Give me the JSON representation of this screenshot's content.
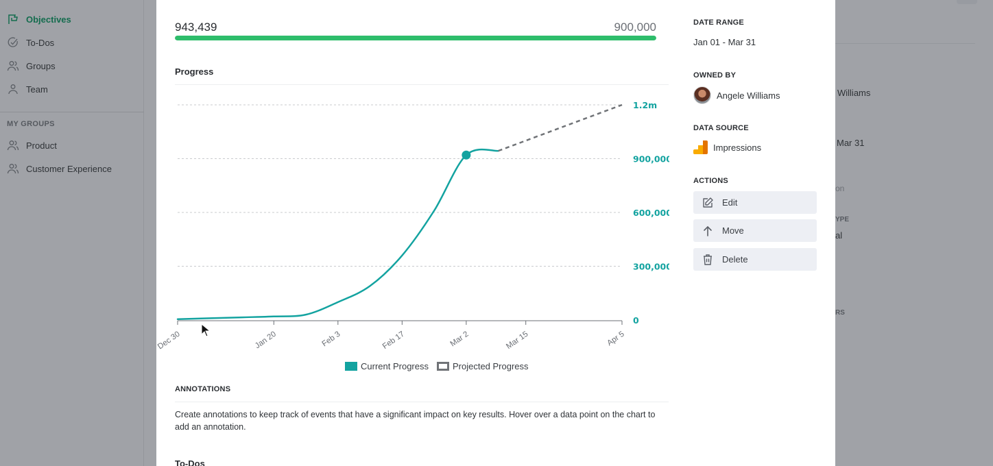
{
  "background": {
    "sidebar": {
      "items": [
        {
          "label": "Objectives",
          "icon": "flag-icon",
          "active": true
        },
        {
          "label": "To-Dos",
          "icon": "check-circle-icon",
          "active": false
        },
        {
          "label": "Groups",
          "icon": "users-icon",
          "active": false
        },
        {
          "label": "Team",
          "icon": "user-icon",
          "active": false
        }
      ],
      "section_label": "MY GROUPS",
      "groups": [
        {
          "label": "Product",
          "icon": "users-icon"
        },
        {
          "label": "Customer Experience",
          "icon": "users-icon"
        }
      ]
    },
    "right_panel": {
      "owner_fragment": "Williams",
      "date_fragment": "Mar 31",
      "muted_fragment": "on",
      "type_label_fragment": "YPE",
      "type_value_fragment": "al",
      "members_label_fragment": "RS"
    }
  },
  "kpi": {
    "current": "943,439",
    "target": "900,000",
    "progress_percent": 100,
    "bar_color": "#2ebd6b"
  },
  "progress_section": {
    "title": "Progress"
  },
  "chart_data": {
    "type": "line",
    "title": "Progress",
    "xlabel": "",
    "ylabel": "",
    "ylim": [
      0,
      1200000
    ],
    "y_ticks": [
      {
        "value": 0,
        "label": "0"
      },
      {
        "value": 300000,
        "label": "300,000"
      },
      {
        "value": 600000,
        "label": "600,000"
      },
      {
        "value": 900000,
        "label": "900,000"
      },
      {
        "value": 1200000,
        "label": "1.2m"
      }
    ],
    "x_ticks": [
      {
        "day": 0,
        "label": "Dec 30"
      },
      {
        "day": 21,
        "label": "Jan 20"
      },
      {
        "day": 35,
        "label": "Feb 3"
      },
      {
        "day": 49,
        "label": "Feb 17"
      },
      {
        "day": 63,
        "label": "Mar 2"
      },
      {
        "day": 76,
        "label": "Mar 15"
      },
      {
        "day": 97,
        "label": "Apr 5"
      }
    ],
    "xlim": [
      0,
      97
    ],
    "grid": true,
    "legend_position": "bottom-center",
    "series": [
      {
        "name": "Current Progress",
        "color": "#13a3a0",
        "style": "solid",
        "points": [
          {
            "day": 0,
            "value": 5000
          },
          {
            "day": 7,
            "value": 10000
          },
          {
            "day": 14,
            "value": 15000
          },
          {
            "day": 21,
            "value": 20000
          },
          {
            "day": 28,
            "value": 30000
          },
          {
            "day": 35,
            "value": 100000
          },
          {
            "day": 42,
            "value": 190000
          },
          {
            "day": 49,
            "value": 360000
          },
          {
            "day": 56,
            "value": 610000
          },
          {
            "day": 63,
            "value": 920000
          },
          {
            "day": 70,
            "value": 943439
          }
        ],
        "highlight_day": 63
      },
      {
        "name": "Projected Progress",
        "color": "#707377",
        "style": "dashed",
        "points": [
          {
            "day": 70,
            "value": 943439
          },
          {
            "day": 97,
            "value": 1200000
          }
        ]
      }
    ]
  },
  "legend": {
    "current_label": "Current Progress",
    "projected_label": "Projected Progress"
  },
  "annotations": {
    "title": "ANNOTATIONS",
    "text": "Create annotations to keep track of events that have a significant impact on key results. Hover over a data point on the chart to add an annotation."
  },
  "todos": {
    "title": "To-Dos"
  },
  "side_panel": {
    "date_range_label": "DATE RANGE",
    "date_range_value": "Jan 01 - Mar 31",
    "owned_by_label": "OWNED BY",
    "owner_name": "Angele Williams",
    "data_source_label": "DATA SOURCE",
    "data_source_name": "Impressions",
    "actions_label": "ACTIONS",
    "actions": [
      {
        "label": "Edit",
        "icon": "edit-icon"
      },
      {
        "label": "Move",
        "icon": "arrow-up-icon"
      },
      {
        "label": "Delete",
        "icon": "trash-icon"
      }
    ]
  }
}
